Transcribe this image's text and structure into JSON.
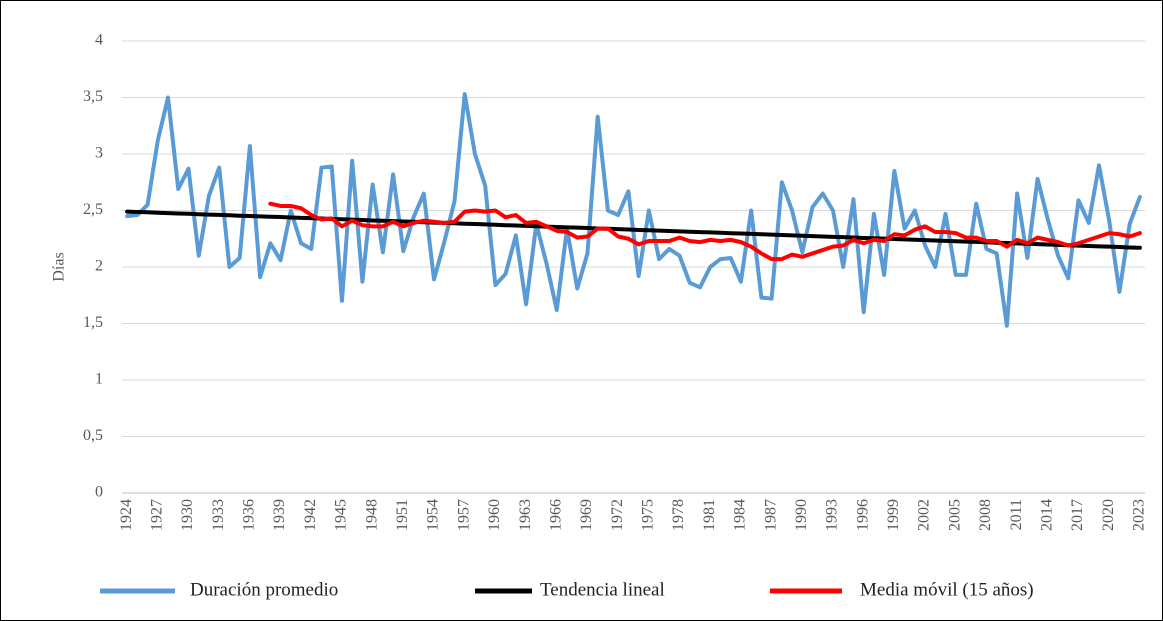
{
  "chart_data": {
    "type": "line",
    "y_label": "Días",
    "categories": [
      "1924",
      null,
      null,
      "1927",
      null,
      null,
      "1930",
      null,
      null,
      "1933",
      null,
      null,
      "1936",
      null,
      null,
      "1939",
      null,
      null,
      "1942",
      null,
      null,
      "1945",
      null,
      null,
      "1948",
      null,
      null,
      "1951",
      null,
      null,
      "1954",
      null,
      null,
      "1957",
      null,
      null,
      "1960",
      null,
      null,
      "1963",
      null,
      null,
      "1966",
      null,
      null,
      "1969",
      null,
      null,
      "1972",
      null,
      null,
      "1975",
      null,
      null,
      "1978",
      null,
      null,
      "1981",
      null,
      null,
      "1984",
      null,
      null,
      "1987",
      null,
      null,
      "1990",
      null,
      null,
      "1993",
      null,
      null,
      "1996",
      null,
      null,
      "1999",
      null,
      null,
      "2002",
      null,
      null,
      "2005",
      null,
      null,
      "2008",
      null,
      null,
      "2011",
      null,
      null,
      "2014",
      null,
      null,
      "2017",
      null,
      null,
      "2020",
      null,
      null,
      "2023"
    ],
    "series": [
      {
        "name": "Duración promedio",
        "color": "#5b9bd5",
        "values": [
          2.45,
          2.46,
          2.55,
          3.12,
          3.5,
          2.69,
          2.87,
          2.1,
          2.63,
          2.88,
          2.0,
          2.08,
          3.07,
          1.91,
          2.21,
          2.06,
          2.5,
          2.21,
          2.16,
          2.88,
          2.89,
          1.7,
          2.94,
          1.87,
          2.73,
          2.13,
          2.82,
          2.14,
          2.44,
          2.65,
          1.89,
          2.22,
          2.58,
          3.53,
          3.0,
          2.72,
          1.84,
          1.94,
          2.28,
          1.67,
          2.38,
          2.03,
          1.62,
          2.34,
          1.81,
          2.12,
          3.33,
          2.5,
          2.46,
          2.67,
          1.92,
          2.5,
          2.07,
          2.16,
          2.1,
          1.86,
          1.82,
          2.0,
          2.07,
          2.08,
          1.87,
          2.5,
          1.73,
          1.72,
          2.75,
          2.5,
          2.13,
          2.53,
          2.65,
          2.5,
          2.0,
          2.6,
          1.6,
          2.47,
          1.93,
          2.85,
          2.34,
          2.5,
          2.19,
          2.0,
          2.47,
          1.93,
          1.93,
          2.56,
          2.16,
          2.12,
          1.48,
          2.65,
          2.08,
          2.78,
          2.42,
          2.1,
          1.9,
          2.59,
          2.39,
          2.9,
          2.41,
          1.78,
          2.38,
          2.62
        ]
      },
      {
        "name": "Tendencia lineal",
        "color": "#000000",
        "values": [
          2.49,
          2.487,
          2.484,
          2.48,
          2.477,
          2.474,
          2.471,
          2.467,
          2.464,
          2.461,
          2.458,
          2.454,
          2.451,
          2.448,
          2.445,
          2.442,
          2.438,
          2.435,
          2.432,
          2.429,
          2.425,
          2.422,
          2.419,
          2.416,
          2.412,
          2.409,
          2.406,
          2.403,
          2.4,
          2.396,
          2.393,
          2.39,
          2.387,
          2.383,
          2.38,
          2.377,
          2.374,
          2.37,
          2.367,
          2.364,
          2.361,
          2.357,
          2.354,
          2.351,
          2.348,
          2.345,
          2.341,
          2.338,
          2.335,
          2.332,
          2.328,
          2.325,
          2.322,
          2.319,
          2.315,
          2.312,
          2.309,
          2.306,
          2.303,
          2.299,
          2.296,
          2.293,
          2.29,
          2.286,
          2.283,
          2.28,
          2.277,
          2.273,
          2.27,
          2.267,
          2.264,
          2.261,
          2.257,
          2.254,
          2.251,
          2.248,
          2.244,
          2.241,
          2.238,
          2.235,
          2.231,
          2.228,
          2.225,
          2.222,
          2.219,
          2.215,
          2.212,
          2.209,
          2.206,
          2.202,
          2.199,
          2.196,
          2.193,
          2.189,
          2.186,
          2.183,
          2.18,
          2.177,
          2.173,
          2.17
        ]
      },
      {
        "name": "Media móvil (15 años)",
        "color": "#ff0000",
        "values": [
          null,
          null,
          null,
          null,
          null,
          null,
          null,
          null,
          null,
          null,
          null,
          null,
          null,
          null,
          2.56,
          2.54,
          2.54,
          2.52,
          2.46,
          2.42,
          2.43,
          2.36,
          2.41,
          2.37,
          2.36,
          2.36,
          2.4,
          2.36,
          2.39,
          2.41,
          2.4,
          2.39,
          2.4,
          2.49,
          2.5,
          2.49,
          2.5,
          2.44,
          2.46,
          2.39,
          2.4,
          2.36,
          2.32,
          2.31,
          2.26,
          2.27,
          2.34,
          2.34,
          2.27,
          2.25,
          2.2,
          2.23,
          2.23,
          2.23,
          2.26,
          2.23,
          2.22,
          2.24,
          2.23,
          2.24,
          2.22,
          2.18,
          2.12,
          2.07,
          2.07,
          2.11,
          2.09,
          2.12,
          2.15,
          2.18,
          2.19,
          2.24,
          2.21,
          2.24,
          2.23,
          2.29,
          2.28,
          2.33,
          2.36,
          2.31,
          2.31,
          2.3,
          2.26,
          2.26,
          2.23,
          2.23,
          2.18,
          2.24,
          2.21,
          2.26,
          2.24,
          2.22,
          2.19,
          2.21,
          2.24,
          2.27,
          2.3,
          2.29,
          2.27,
          2.3
        ]
      }
    ],
    "ylim": [
      0,
      4
    ],
    "yticks": [
      0,
      {
        "value": 0.5,
        "label": "0,5"
      },
      1,
      {
        "value": 1.5,
        "label": "1,5"
      },
      2,
      {
        "value": 2.5,
        "label": "2,5"
      },
      3,
      {
        "value": 3.5,
        "label": "3,5"
      },
      4
    ],
    "grid": true,
    "legend": "bottom"
  }
}
